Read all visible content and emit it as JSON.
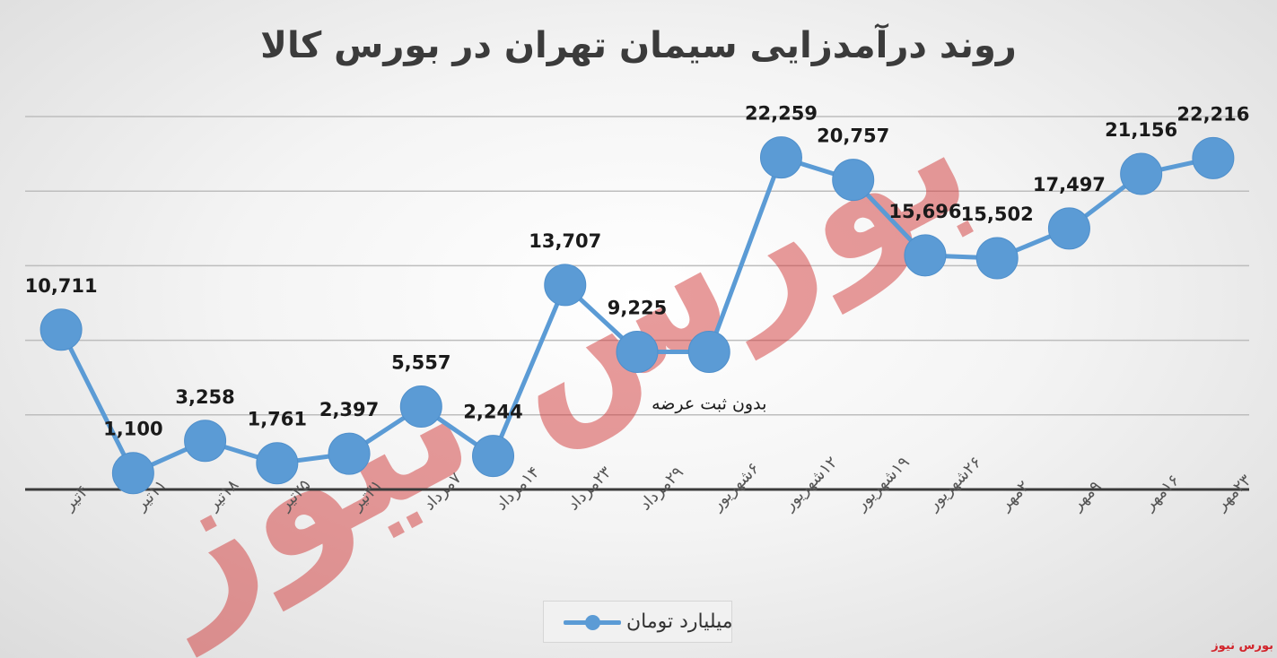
{
  "chart_data": {
    "type": "line",
    "title": "روند درآمدزایی سیمان تهران در بورس کالا",
    "categories": [
      "۴تیر",
      "۱۱تیر",
      "۱۸تیر",
      "۲۵تیر",
      "۳۱تیر",
      "۷مرداد",
      "۱۴مرداد",
      "۲۳مرداد",
      "۲۹مرداد",
      "۶شهریور",
      "۱۲شهریور",
      "۱۹شهریور",
      "۲۶شهریور",
      "۲مهر",
      "۹مهر",
      "۱۶مهر",
      "۲۳مهر"
    ],
    "series": [
      {
        "name": "میلیارد تومان",
        "values": [
          10711,
          1100,
          3258,
          1761,
          2397,
          5557,
          2244,
          13707,
          9225,
          9225,
          22259,
          20757,
          15696,
          15502,
          17497,
          21156,
          22216
        ],
        "labels": [
          "10,711",
          "1,100",
          "3,258",
          "1,761",
          "2,397",
          "5,557",
          "2,244",
          "13,707",
          "9,225",
          "",
          "22,259",
          "20,757",
          "15,696",
          "15,502",
          "17,497",
          "21,156",
          "22,216"
        ],
        "color": "#5b9bd5"
      }
    ],
    "annotations": [
      {
        "category": "۶شهریور",
        "text": "بدون ثبت عرضه"
      }
    ],
    "ylim": [
      0,
      25000
    ],
    "grid": true,
    "legend": "bottom"
  },
  "watermark": {
    "text": "بورس نیوز"
  },
  "source_tag": "بورس نیوز"
}
